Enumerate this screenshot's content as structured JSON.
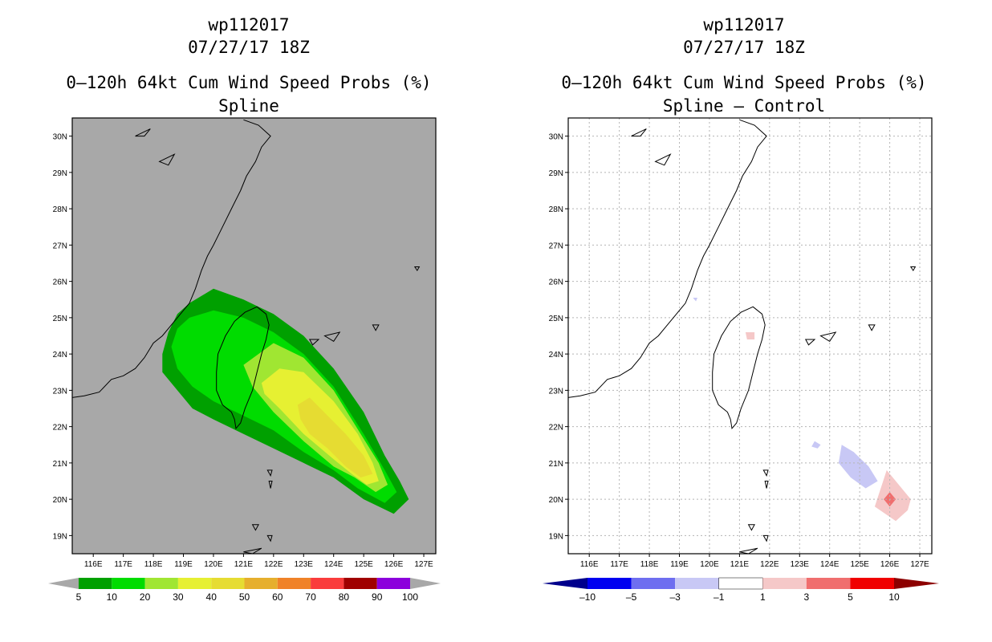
{
  "left_panel": {
    "storm_id": "wp112017",
    "datetime": "07/27/17 18Z",
    "product": "0–120h 64kt Cum Wind Speed Probs (%)",
    "subtitle": "Spline"
  },
  "right_panel": {
    "storm_id": "wp112017",
    "datetime": "07/27/17 18Z",
    "product": "0–120h 64kt Cum Wind Speed Probs (%)",
    "subtitle": "Spline – Control"
  },
  "colors": {
    "land_bg": "#a8a8a8",
    "coast": "#000000",
    "grid": "#b4b4b4"
  },
  "chart_data": [
    {
      "type": "heatmap",
      "title": "0–120h 64kt Cum Wind Speed Probs (%) – Spline",
      "x_ticks": [
        "116E",
        "117E",
        "118E",
        "119E",
        "120E",
        "121E",
        "122E",
        "123E",
        "124E",
        "125E",
        "126E",
        "127E"
      ],
      "y_ticks": [
        "19N",
        "20N",
        "21N",
        "22N",
        "23N",
        "24N",
        "25N",
        "26N",
        "27N",
        "28N",
        "29N",
        "30N"
      ],
      "xlim": [
        115.3,
        127.4
      ],
      "ylim": [
        18.5,
        30.5
      ],
      "legend_labels": [
        "5",
        "10",
        "20",
        "30",
        "40",
        "50",
        "60",
        "70",
        "80",
        "90",
        "100"
      ],
      "legend_colors": [
        "#00a000",
        "#00dc00",
        "#a0e632",
        "#e6f032",
        "#e6dc32",
        "#e6af2d",
        "#f08228",
        "#fa3c3c",
        "#a00000",
        "#8c00dc"
      ],
      "contours": [
        {
          "level": 5,
          "color": "#00a000",
          "points": [
            [
              119.2,
              25.4
            ],
            [
              120.0,
              25.8
            ],
            [
              121.0,
              25.5
            ],
            [
              122.0,
              25.1
            ],
            [
              123.0,
              24.5
            ],
            [
              124.0,
              23.6
            ],
            [
              125.0,
              22.4
            ],
            [
              125.7,
              21.2
            ],
            [
              126.2,
              20.5
            ],
            [
              126.5,
              20.0
            ],
            [
              126.0,
              19.6
            ],
            [
              125.0,
              20.0
            ],
            [
              124.0,
              20.6
            ],
            [
              123.0,
              21.0
            ],
            [
              122.0,
              21.4
            ],
            [
              121.0,
              21.8
            ],
            [
              120.0,
              22.2
            ],
            [
              119.3,
              22.5
            ],
            [
              118.8,
              23.0
            ],
            [
              118.3,
              23.5
            ],
            [
              118.3,
              24.0
            ],
            [
              118.5,
              24.6
            ],
            [
              118.8,
              25.1
            ]
          ]
        },
        {
          "level": 10,
          "color": "#00dc00",
          "points": [
            [
              119.2,
              25.0
            ],
            [
              120.0,
              25.2
            ],
            [
              121.0,
              25.0
            ],
            [
              122.0,
              24.6
            ],
            [
              123.0,
              24.0
            ],
            [
              124.0,
              23.1
            ],
            [
              125.0,
              21.8
            ],
            [
              125.7,
              20.8
            ],
            [
              126.1,
              20.2
            ],
            [
              125.7,
              19.9
            ],
            [
              124.8,
              20.3
            ],
            [
              124.0,
              20.8
            ],
            [
              123.0,
              21.3
            ],
            [
              122.0,
              21.9
            ],
            [
              121.0,
              22.3
            ],
            [
              120.0,
              22.7
            ],
            [
              119.3,
              23.1
            ],
            [
              118.8,
              23.6
            ],
            [
              118.6,
              24.2
            ],
            [
              118.8,
              24.7
            ]
          ]
        },
        {
          "level": 20,
          "color": "#a0e632",
          "points": [
            [
              121.0,
              23.7
            ],
            [
              122.0,
              24.3
            ],
            [
              123.0,
              23.9
            ],
            [
              124.0,
              23.0
            ],
            [
              124.9,
              21.8
            ],
            [
              125.5,
              21.0
            ],
            [
              125.8,
              20.4
            ],
            [
              125.4,
              20.2
            ],
            [
              124.7,
              20.6
            ],
            [
              124.0,
              20.9
            ],
            [
              123.0,
              21.6
            ],
            [
              122.0,
              22.4
            ],
            [
              121.3,
              23.1
            ]
          ]
        },
        {
          "level": 30,
          "color": "#e6f032",
          "points": [
            [
              121.6,
              23.2
            ],
            [
              122.2,
              23.6
            ],
            [
              123.0,
              23.5
            ],
            [
              124.0,
              22.7
            ],
            [
              124.8,
              21.8
            ],
            [
              125.3,
              21.0
            ],
            [
              125.5,
              20.5
            ],
            [
              125.1,
              20.4
            ],
            [
              124.6,
              20.7
            ],
            [
              124.0,
              21.1
            ],
            [
              123.0,
              21.8
            ],
            [
              122.2,
              22.5
            ],
            [
              121.7,
              22.9
            ]
          ]
        },
        {
          "level": 40,
          "color": "#e6dc32",
          "points": [
            [
              122.8,
              22.6
            ],
            [
              123.2,
              22.8
            ],
            [
              123.8,
              22.3
            ],
            [
              124.4,
              21.8
            ],
            [
              125.0,
              21.2
            ],
            [
              125.3,
              20.7
            ],
            [
              124.9,
              20.6
            ],
            [
              124.4,
              20.9
            ],
            [
              123.8,
              21.4
            ],
            [
              123.2,
              21.8
            ],
            [
              122.9,
              22.2
            ]
          ]
        }
      ],
      "land_regions": [
        {
          "name": "Taiwan"
        }
      ]
    },
    {
      "type": "heatmap",
      "title": "0–120h 64kt Cum Wind Speed Probs (%) – Spline – Control",
      "x_ticks": [
        "116E",
        "117E",
        "118E",
        "119E",
        "120E",
        "121E",
        "122E",
        "123E",
        "124E",
        "125E",
        "126E",
        "127E"
      ],
      "y_ticks": [
        "19N",
        "20N",
        "21N",
        "22N",
        "23N",
        "24N",
        "25N",
        "26N",
        "27N",
        "28N",
        "29N",
        "30N"
      ],
      "xlim": [
        115.3,
        127.4
      ],
      "ylim": [
        18.5,
        30.5
      ],
      "legend_labels": [
        "–10",
        "–5",
        "–3",
        "–1",
        "1",
        "3",
        "5",
        "10"
      ],
      "legend_colors": [
        "#00008c",
        "#0000f0",
        "#6e6ef0",
        "#c8c8f5",
        "#ffffff",
        "#f5c8c8",
        "#f06e6e",
        "#f00000",
        "#8c0000"
      ],
      "contours": [
        {
          "level": -3,
          "color": "#c8c8f5",
          "points": [
            [
              124.4,
              21.5
            ],
            [
              124.8,
              21.3
            ],
            [
              125.3,
              20.9
            ],
            [
              125.6,
              20.5
            ],
            [
              125.2,
              20.3
            ],
            [
              124.7,
              20.6
            ],
            [
              124.3,
              21.0
            ]
          ]
        },
        {
          "level": -3,
          "color": "#c8c8f5",
          "points": [
            [
              123.5,
              21.6
            ],
            [
              123.7,
              21.5
            ],
            [
              123.6,
              21.4
            ],
            [
              123.4,
              21.45
            ]
          ]
        },
        {
          "level": -3,
          "color": "#c8c8f5",
          "points": [
            [
              119.45,
              25.55
            ],
            [
              119.6,
              25.55
            ],
            [
              119.55,
              25.45
            ]
          ]
        },
        {
          "level": 3,
          "color": "#f5c8c8",
          "points": [
            [
              125.9,
              20.8
            ],
            [
              126.2,
              20.5
            ],
            [
              126.7,
              20.0
            ],
            [
              126.6,
              19.7
            ],
            [
              126.2,
              19.4
            ],
            [
              125.5,
              19.8
            ],
            [
              125.7,
              20.3
            ]
          ]
        },
        {
          "level": 3,
          "color": "#f5c8c8",
          "points": [
            [
              121.2,
              24.6
            ],
            [
              121.5,
              24.6
            ],
            [
              121.5,
              24.4
            ],
            [
              121.25,
              24.4
            ]
          ]
        },
        {
          "level": 5,
          "color": "#f06e6e",
          "points": [
            [
              126.0,
              20.2
            ],
            [
              126.2,
              20.0
            ],
            [
              126.0,
              19.8
            ],
            [
              125.8,
              20.0
            ]
          ]
        }
      ],
      "land_regions": [
        {
          "name": "Taiwan"
        }
      ]
    }
  ]
}
